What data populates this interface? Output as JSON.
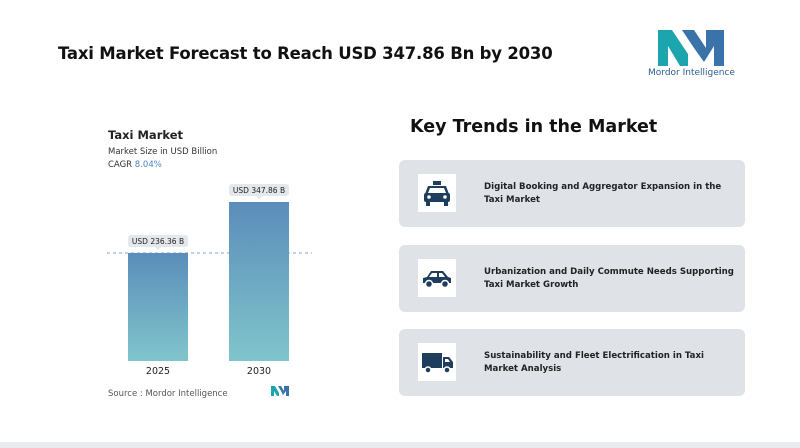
{
  "title": "Taxi Market Forecast to Reach USD 347.86 Bn by 2030",
  "logo": "Mordor Intelligence",
  "chart_data": {
    "type": "bar",
    "title": "Taxi Market",
    "subtitle": "Market Size in USD Billion",
    "cagr_label": "CAGR",
    "cagr": "8.04%",
    "categories": [
      "2025",
      "2030"
    ],
    "values": [
      236.36,
      347.86
    ],
    "value_labels": [
      "USD 236.36 B",
      "USD 347.86 B"
    ],
    "source": "Source : Mordor Intelligence"
  },
  "trends": {
    "title": "Key Trends in the Market",
    "items": [
      "Digital Booking and Aggregator Expansion in the Taxi Market",
      "Urbanization and Daily Commute Needs Supporting Taxi Market Growth",
      "Sustainability and Fleet Electrification in Taxi Market Analysis"
    ]
  }
}
